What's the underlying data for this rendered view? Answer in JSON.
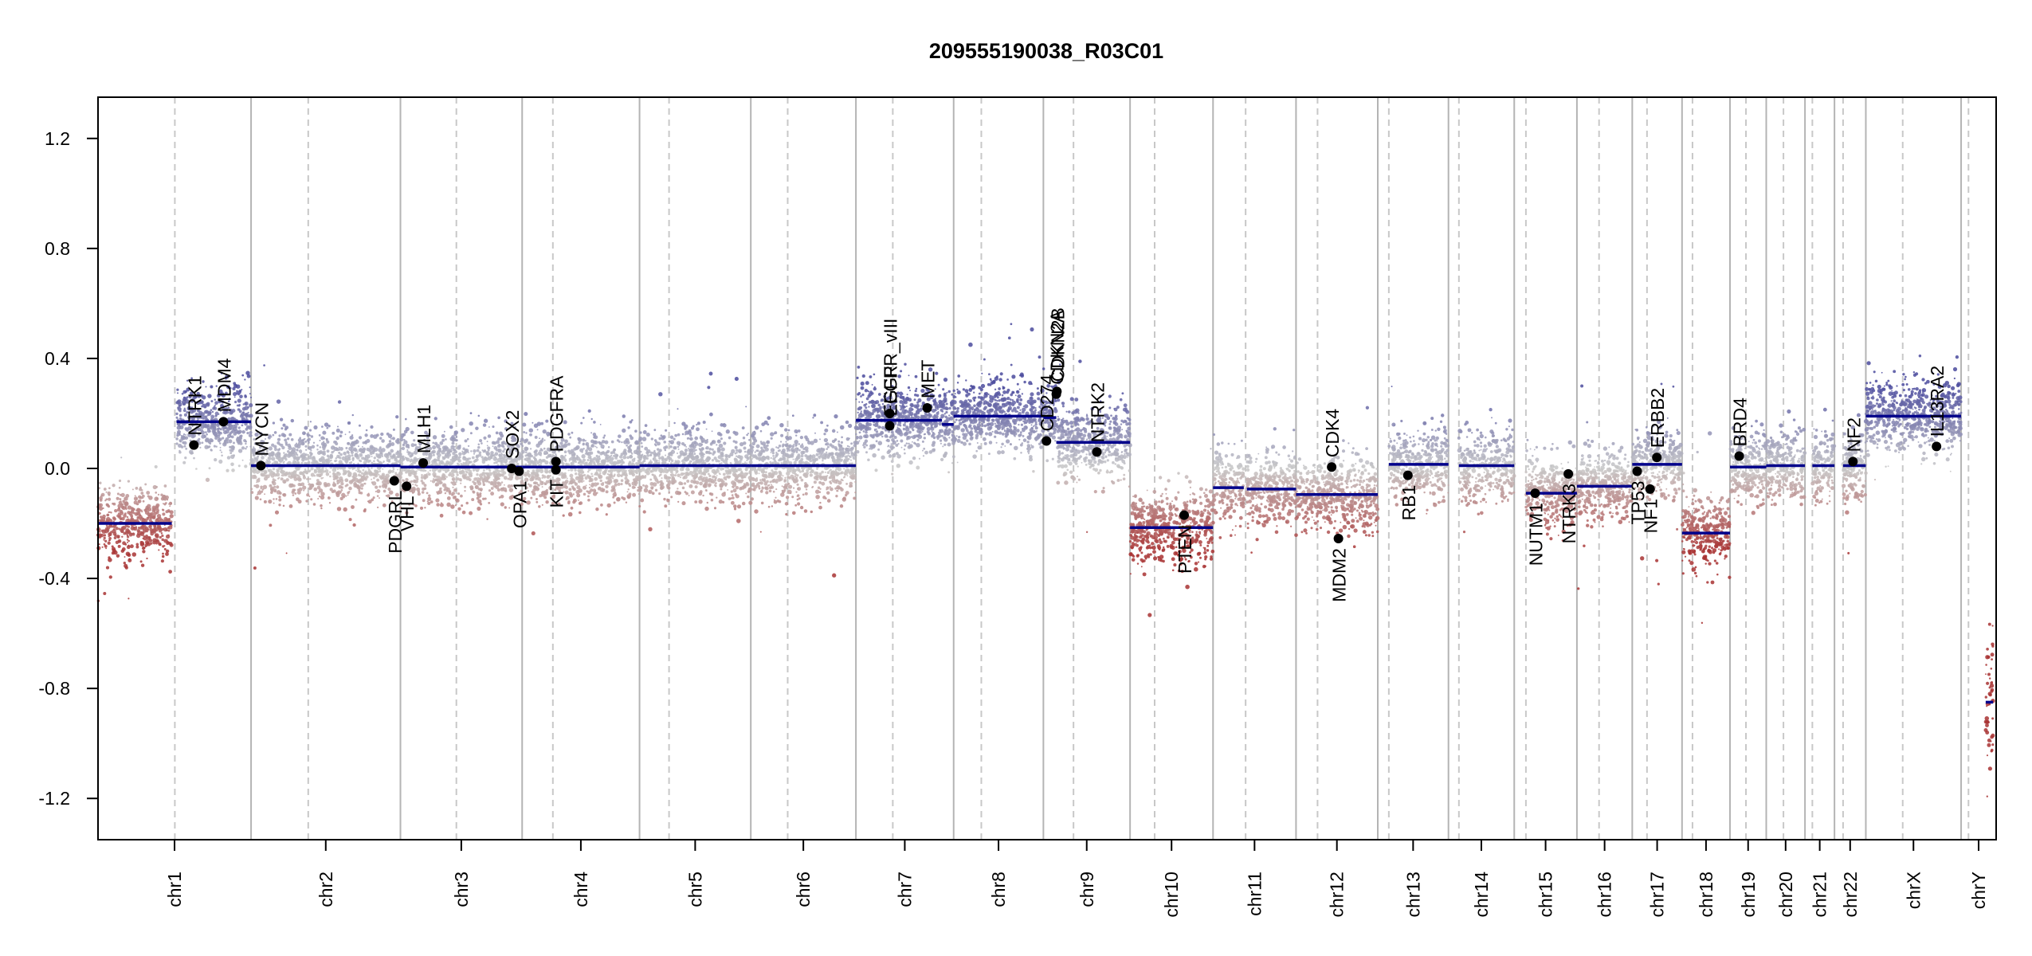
{
  "chart_data": {
    "type": "scatter",
    "title": "209555190038_R03C01",
    "xlabel": "",
    "ylabel": "",
    "ylim": [
      -1.35,
      1.35
    ],
    "yticks": [
      -1.2,
      -0.8,
      -0.4,
      0.0,
      0.4,
      0.8,
      1.2
    ],
    "ytick_labels": [
      "-1.2",
      "-0.8",
      "-0.4",
      "0.0",
      "0.4",
      "0.8",
      "1.2"
    ],
    "chromosomes": [
      {
        "name": "chr1",
        "size": 249,
        "centromere": 125,
        "segments": [
          {
            "s": 0,
            "e": 120,
            "v": -0.2
          },
          {
            "s": 128,
            "e": 249,
            "v": 0.17
          }
        ]
      },
      {
        "name": "chr2",
        "size": 243,
        "centromere": 93,
        "segments": [
          {
            "s": 0,
            "e": 243,
            "v": 0.01
          }
        ]
      },
      {
        "name": "chr3",
        "size": 198,
        "centromere": 91,
        "segments": [
          {
            "s": 0,
            "e": 198,
            "v": 0.005
          }
        ]
      },
      {
        "name": "chr4",
        "size": 191,
        "centromere": 50,
        "segments": [
          {
            "s": 0,
            "e": 191,
            "v": 0.005
          }
        ]
      },
      {
        "name": "chr5",
        "size": 181,
        "centromere": 48,
        "segments": [
          {
            "s": 0,
            "e": 181,
            "v": 0.01
          }
        ]
      },
      {
        "name": "chr6",
        "size": 171,
        "centromere": 60,
        "segments": [
          {
            "s": 0,
            "e": 171,
            "v": 0.01
          }
        ]
      },
      {
        "name": "chr7",
        "size": 159,
        "centromere": 60,
        "segments": [
          {
            "s": 0,
            "e": 140,
            "v": 0.175
          },
          {
            "s": 140,
            "e": 159,
            "v": 0.16
          }
        ]
      },
      {
        "name": "chr8",
        "size": 146,
        "centromere": 45,
        "segments": [
          {
            "s": 0,
            "e": 146,
            "v": 0.19
          }
        ]
      },
      {
        "name": "chr9",
        "size": 141,
        "centromere": 49,
        "segments": [
          {
            "s": 0,
            "e": 21,
            "v": 0.185
          },
          {
            "s": 21,
            "e": 141,
            "v": 0.095
          }
        ]
      },
      {
        "name": "chr10",
        "size": 135,
        "centromere": 40,
        "segments": [
          {
            "s": 0,
            "e": 135,
            "v": -0.215
          }
        ]
      },
      {
        "name": "chr11",
        "size": 135,
        "centromere": 53,
        "segments": [
          {
            "s": 0,
            "e": 50,
            "v": -0.07
          },
          {
            "s": 55,
            "e": 135,
            "v": -0.075
          }
        ]
      },
      {
        "name": "chr12",
        "size": 133,
        "centromere": 35,
        "segments": [
          {
            "s": 0,
            "e": 133,
            "v": -0.095
          }
        ]
      },
      {
        "name": "chr13",
        "size": 115,
        "centromere": 18,
        "segments": [
          {
            "s": 18,
            "e": 115,
            "v": 0.015
          }
        ]
      },
      {
        "name": "chr14",
        "size": 107,
        "centromere": 17,
        "segments": [
          {
            "s": 17,
            "e": 107,
            "v": 0.01
          }
        ]
      },
      {
        "name": "chr15",
        "size": 102,
        "centromere": 19,
        "segments": [
          {
            "s": 19,
            "e": 102,
            "v": -0.09
          }
        ]
      },
      {
        "name": "chr16",
        "size": 90,
        "centromere": 36,
        "segments": [
          {
            "s": 0,
            "e": 90,
            "v": -0.065
          }
        ]
      },
      {
        "name": "chr17",
        "size": 81,
        "centromere": 24,
        "segments": [
          {
            "s": 0,
            "e": 81,
            "v": 0.015
          }
        ]
      },
      {
        "name": "chr18",
        "size": 78,
        "centromere": 17,
        "segments": [
          {
            "s": 0,
            "e": 78,
            "v": -0.235
          }
        ]
      },
      {
        "name": "chr19",
        "size": 59,
        "centromere": 26,
        "segments": [
          {
            "s": 0,
            "e": 59,
            "v": 0.005
          }
        ]
      },
      {
        "name": "chr20",
        "size": 63,
        "centromere": 28,
        "segments": [
          {
            "s": 0,
            "e": 63,
            "v": 0.01
          }
        ]
      },
      {
        "name": "chr21",
        "size": 48,
        "centromere": 12,
        "segments": [
          {
            "s": 12,
            "e": 48,
            "v": 0.01
          }
        ]
      },
      {
        "name": "chr22",
        "size": 51,
        "centromere": 14,
        "segments": [
          {
            "s": 14,
            "e": 51,
            "v": 0.01
          }
        ]
      },
      {
        "name": "chrX",
        "size": 155,
        "centromere": 60,
        "segments": [
          {
            "s": 0,
            "e": 155,
            "v": 0.19
          }
        ]
      },
      {
        "name": "chrY",
        "size": 57,
        "centromere": 12,
        "segments": [
          {
            "s": 40,
            "e": 52,
            "v": -0.85
          }
        ]
      }
    ],
    "genes": [
      {
        "name": "NTRK1",
        "chr": "chr1",
        "pos": 156,
        "v": 0.085,
        "label_side": "above"
      },
      {
        "name": "MDM4",
        "chr": "chr1",
        "pos": 204,
        "v": 0.17,
        "label_side": "above"
      },
      {
        "name": "MYCN",
        "chr": "chr2",
        "pos": 16,
        "v": 0.01,
        "label_side": "above"
      },
      {
        "name": "PDGRL",
        "chr": "chr2",
        "pos": 233,
        "v": -0.045,
        "label_side": "below"
      },
      {
        "name": "VHL",
        "chr": "chr3",
        "pos": 10,
        "v": -0.065,
        "label_side": "below"
      },
      {
        "name": "MLH1",
        "chr": "chr3",
        "pos": 37,
        "v": 0.02,
        "label_side": "above"
      },
      {
        "name": "SOX2",
        "chr": "chr3",
        "pos": 181,
        "v": 0.0,
        "label_side": "above"
      },
      {
        "name": "OPA1",
        "chr": "chr3",
        "pos": 193,
        "v": -0.01,
        "label_side": "below"
      },
      {
        "name": "KIT",
        "chr": "chr4",
        "pos": 55,
        "v": -0.005,
        "label_side": "below"
      },
      {
        "name": "PDGFRA",
        "chr": "chr4",
        "pos": 55,
        "v": 0.025,
        "label_side": "above"
      },
      {
        "name": "EGFR",
        "chr": "chr7",
        "pos": 55,
        "v": 0.155,
        "label_side": "above"
      },
      {
        "name": "EGFR_vIII",
        "chr": "chr7",
        "pos": 55,
        "v": 0.2,
        "label_side": "above"
      },
      {
        "name": "MET",
        "chr": "chr7",
        "pos": 116,
        "v": 0.22,
        "label_side": "above"
      },
      {
        "name": "CD274",
        "chr": "chr9",
        "pos": 5,
        "v": 0.1,
        "label_side": "above"
      },
      {
        "name": "CDKN2A",
        "chr": "chr9",
        "pos": 21,
        "v": 0.27,
        "label_side": "above"
      },
      {
        "name": "CDKN2B",
        "chr": "chr9",
        "pos": 22,
        "v": 0.28,
        "label_side": "above"
      },
      {
        "name": "NTRK2",
        "chr": "chr9",
        "pos": 87,
        "v": 0.06,
        "label_side": "above"
      },
      {
        "name": "PTEN",
        "chr": "chr10",
        "pos": 88,
        "v": -0.17,
        "label_side": "below"
      },
      {
        "name": "CDK4",
        "chr": "chr12",
        "pos": 58,
        "v": 0.005,
        "label_side": "above"
      },
      {
        "name": "MDM2",
        "chr": "chr12",
        "pos": 69,
        "v": -0.255,
        "label_side": "below"
      },
      {
        "name": "RB1",
        "chr": "chr13",
        "pos": 49,
        "v": -0.025,
        "label_side": "below"
      },
      {
        "name": "NUTM1",
        "chr": "chr15",
        "pos": 34,
        "v": -0.09,
        "label_side": "below"
      },
      {
        "name": "NTRK3",
        "chr": "chr15",
        "pos": 88,
        "v": -0.02,
        "label_side": "below"
      },
      {
        "name": "TP53",
        "chr": "chr17",
        "pos": 8,
        "v": -0.01,
        "label_side": "below"
      },
      {
        "name": "NF1",
        "chr": "chr17",
        "pos": 29,
        "v": -0.075,
        "label_side": "below"
      },
      {
        "name": "ERBB2",
        "chr": "chr17",
        "pos": 40,
        "v": 0.04,
        "label_side": "above"
      },
      {
        "name": "BRD4",
        "chr": "chr19",
        "pos": 15,
        "v": 0.045,
        "label_side": "above"
      },
      {
        "name": "NF2",
        "chr": "chr22",
        "pos": 30,
        "v": 0.025,
        "label_side": "above"
      },
      {
        "name": "IL13RA2",
        "chr": "chrX",
        "pos": 115,
        "v": 0.08,
        "label_side": "above"
      }
    ],
    "colors": {
      "segment": "#00008b",
      "gain": "#4b4b9e",
      "neutral": "#c8c8c8",
      "loss": "#a83232",
      "gene_point": "#000000",
      "chrom_boundary": "#b4b4b4",
      "centromere": "#c8c8c8"
    }
  }
}
